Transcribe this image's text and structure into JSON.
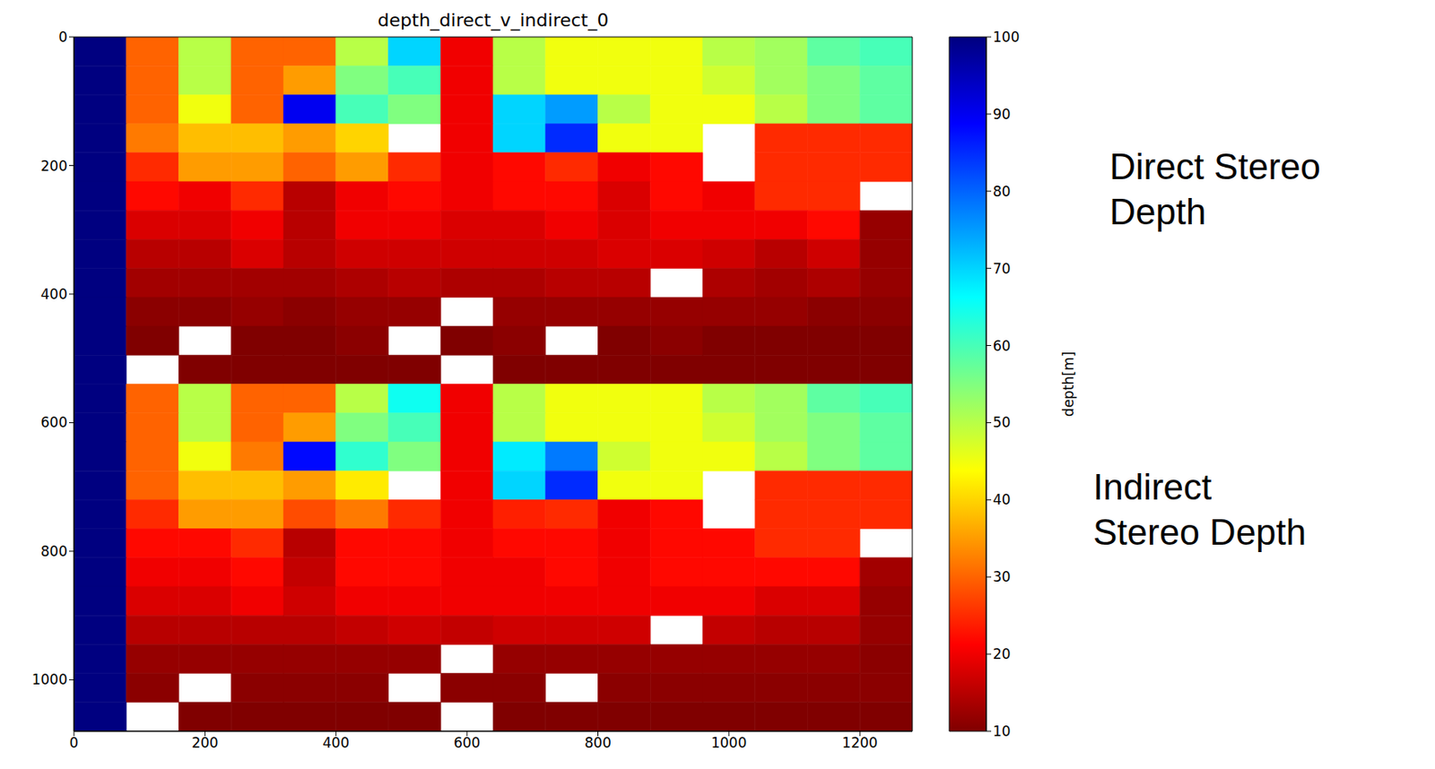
{
  "chart_data": {
    "type": "heatmap",
    "title": "depth_direct_v_indirect_0",
    "xlim": [
      0,
      1280
    ],
    "ylim": [
      0,
      1080
    ],
    "xticks": [
      0,
      200,
      400,
      600,
      800,
      1000,
      1200
    ],
    "yticks": [
      0,
      200,
      400,
      600,
      800,
      1000
    ],
    "x_edges": [
      0,
      80,
      160,
      240,
      320,
      400,
      480,
      560,
      640,
      720,
      800,
      880,
      960,
      1040,
      1120,
      1200,
      1280
    ],
    "y_edges": [
      0,
      45,
      90,
      135,
      180,
      225,
      270,
      315,
      360,
      405,
      450,
      495,
      540,
      585,
      630,
      675,
      720,
      765,
      810,
      855,
      900,
      945,
      990,
      1035,
      1080
    ],
    "cells": [
      [
        100,
        30,
        50,
        30,
        30,
        50,
        70,
        20,
        50,
        45,
        45,
        45,
        50,
        52,
        58,
        60
      ],
      [
        100,
        30,
        50,
        30,
        35,
        55,
        60,
        20,
        50,
        45,
        45,
        45,
        48,
        52,
        55,
        58
      ],
      [
        100,
        30,
        45,
        30,
        90,
        60,
        55,
        20,
        70,
        75,
        50,
        45,
        45,
        50,
        55,
        58
      ],
      [
        100,
        32,
        38,
        38,
        35,
        40,
        null,
        20,
        70,
        85,
        45,
        45,
        null,
        25,
        25,
        25
      ],
      [
        100,
        25,
        35,
        35,
        30,
        35,
        25,
        20,
        22,
        25,
        20,
        22,
        null,
        25,
        25,
        25
      ],
      [
        100,
        22,
        20,
        25,
        15,
        20,
        22,
        20,
        22,
        22,
        18,
        22,
        20,
        25,
        25,
        null
      ],
      [
        100,
        18,
        18,
        20,
        15,
        20,
        20,
        18,
        18,
        20,
        18,
        20,
        20,
        20,
        22,
        12
      ],
      [
        100,
        15,
        15,
        18,
        15,
        17,
        17,
        17,
        17,
        17,
        18,
        18,
        17,
        15,
        17,
        12
      ],
      [
        100,
        13,
        13,
        13,
        13,
        14,
        15,
        14,
        14,
        15,
        15,
        null,
        14,
        13,
        14,
        12
      ],
      [
        100,
        11,
        11,
        12,
        11,
        12,
        12,
        null,
        12,
        12,
        12,
        12,
        12,
        12,
        11,
        11
      ],
      [
        100,
        10,
        null,
        10,
        10,
        11,
        null,
        10,
        11,
        null,
        10,
        11,
        10,
        10,
        10,
        10
      ],
      [
        100,
        null,
        10,
        10,
        10,
        10,
        10,
        null,
        10,
        10,
        10,
        10,
        10,
        10,
        10,
        10
      ],
      [
        100,
        30,
        50,
        30,
        30,
        50,
        65,
        20,
        50,
        45,
        45,
        45,
        50,
        52,
        58,
        60
      ],
      [
        100,
        30,
        50,
        30,
        35,
        55,
        60,
        20,
        50,
        45,
        45,
        45,
        48,
        52,
        55,
        58
      ],
      [
        100,
        30,
        45,
        32,
        88,
        62,
        55,
        20,
        68,
        78,
        48,
        45,
        45,
        50,
        55,
        58
      ],
      [
        100,
        30,
        38,
        38,
        35,
        42,
        null,
        20,
        70,
        85,
        45,
        45,
        null,
        25,
        25,
        25
      ],
      [
        100,
        25,
        35,
        35,
        28,
        32,
        25,
        20,
        24,
        25,
        20,
        22,
        null,
        25,
        25,
        25
      ],
      [
        100,
        22,
        22,
        25,
        15,
        22,
        22,
        20,
        22,
        22,
        20,
        22,
        22,
        25,
        25,
        null
      ],
      [
        100,
        20,
        20,
        22,
        16,
        22,
        22,
        20,
        20,
        22,
        20,
        22,
        22,
        22,
        22,
        13
      ],
      [
        100,
        18,
        18,
        20,
        17,
        20,
        20,
        20,
        20,
        20,
        20,
        20,
        20,
        18,
        18,
        12
      ],
      [
        100,
        15,
        15,
        15,
        15,
        16,
        17,
        16,
        17,
        17,
        17,
        null,
        16,
        15,
        15,
        12
      ],
      [
        100,
        12,
        12,
        12,
        12,
        12,
        12,
        null,
        12,
        12,
        12,
        12,
        12,
        12,
        12,
        11
      ],
      [
        100,
        11,
        null,
        11,
        11,
        11,
        null,
        11,
        11,
        null,
        11,
        11,
        11,
        11,
        11,
        11
      ],
      [
        100,
        null,
        10,
        10,
        10,
        10,
        10,
        null,
        10,
        10,
        10,
        10,
        10,
        10,
        10,
        10
      ]
    ],
    "colorbar": {
      "label": "depth[m]",
      "range": [
        10,
        100
      ],
      "ticks": [
        10,
        20,
        30,
        40,
        50,
        60,
        70,
        80,
        90,
        100
      ]
    },
    "annotations": [
      "Direct Stereo Depth",
      "Indirect Stereo Depth"
    ]
  }
}
